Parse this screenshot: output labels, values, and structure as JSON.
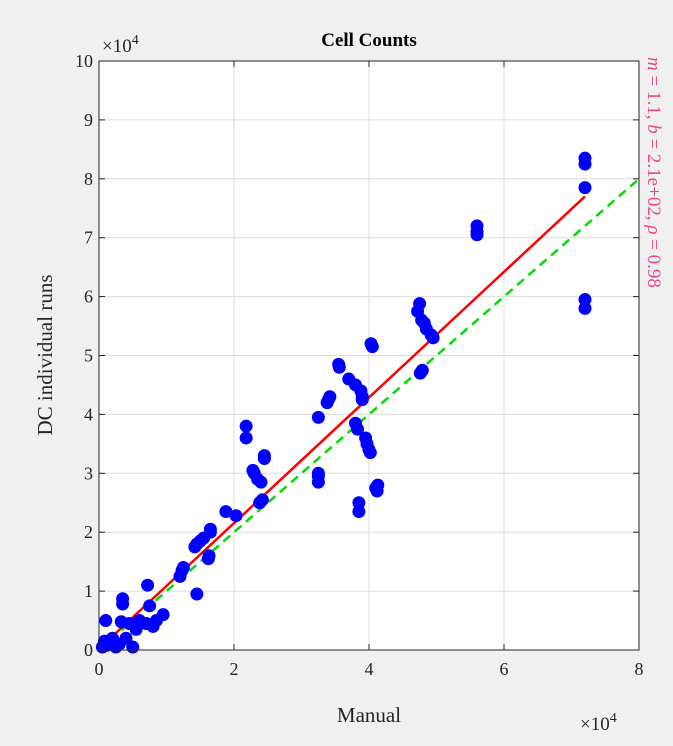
{
  "chart_data": {
    "type": "scatter",
    "title": "Cell Counts",
    "xlabel": "Manual",
    "ylabel": "DC individual runs",
    "x_exponent": "×10",
    "x_exponent_power": "4",
    "y_exponent": "×10",
    "y_exponent_power": "4",
    "xlim": [
      0,
      80000
    ],
    "ylim": [
      0,
      100000
    ],
    "xticks": [
      0,
      20000,
      40000,
      60000,
      80000
    ],
    "xtick_labels": [
      "0",
      "2",
      "4",
      "6",
      "8"
    ],
    "yticks": [
      0,
      10000,
      20000,
      30000,
      40000,
      50000,
      60000,
      70000,
      80000,
      90000,
      100000
    ],
    "ytick_labels": [
      "0",
      "1",
      "2",
      "3",
      "4",
      "5",
      "6",
      "7",
      "8",
      "9",
      "10"
    ],
    "grid": true,
    "annotation": "m = 1.1, b = 2.1e+02, ρ = 0.98",
    "annotation_parts": {
      "m_sym": "m",
      "m_val": " = 1.1, ",
      "b_sym": "b",
      "b_val": " = 2.1e+02, ",
      "rho_sym": "ρ",
      "rho_val": " = 0.98"
    },
    "colors": {
      "points": "#0000ff",
      "fit": "#ff0000",
      "identity": "#00dd00",
      "annotation": "#e8488a"
    },
    "fit_line": {
      "x": [
        0,
        72000
      ],
      "y": [
        210,
        77000
      ]
    },
    "identity_line": {
      "x": [
        0,
        80000
      ],
      "y": [
        0,
        80000
      ]
    },
    "points": [
      {
        "x": 500,
        "y": 500
      },
      {
        "x": 800,
        "y": 1500
      },
      {
        "x": 1000,
        "y": 5000
      },
      {
        "x": 1200,
        "y": 800
      },
      {
        "x": 1500,
        "y": 1200
      },
      {
        "x": 2000,
        "y": 2000
      },
      {
        "x": 2500,
        "y": 500
      },
      {
        "x": 3000,
        "y": 1000
      },
      {
        "x": 3300,
        "y": 4800
      },
      {
        "x": 3500,
        "y": 7800
      },
      {
        "x": 3500,
        "y": 8700
      },
      {
        "x": 4000,
        "y": 2000
      },
      {
        "x": 4500,
        "y": 4500
      },
      {
        "x": 5000,
        "y": 500
      },
      {
        "x": 5500,
        "y": 3500
      },
      {
        "x": 6000,
        "y": 5000
      },
      {
        "x": 7000,
        "y": 4500
      },
      {
        "x": 7200,
        "y": 11000
      },
      {
        "x": 7500,
        "y": 7500
      },
      {
        "x": 8000,
        "y": 4000
      },
      {
        "x": 8500,
        "y": 5000
      },
      {
        "x": 9500,
        "y": 6000
      },
      {
        "x": 12000,
        "y": 12500
      },
      {
        "x": 12300,
        "y": 13500
      },
      {
        "x": 12500,
        "y": 14000
      },
      {
        "x": 14200,
        "y": 17500
      },
      {
        "x": 14500,
        "y": 18000
      },
      {
        "x": 14500,
        "y": 9500
      },
      {
        "x": 15000,
        "y": 18500
      },
      {
        "x": 15500,
        "y": 19000
      },
      {
        "x": 16200,
        "y": 15500
      },
      {
        "x": 16300,
        "y": 16000
      },
      {
        "x": 16500,
        "y": 20000
      },
      {
        "x": 16500,
        "y": 20500
      },
      {
        "x": 18800,
        "y": 23500
      },
      {
        "x": 20300,
        "y": 22800
      },
      {
        "x": 21800,
        "y": 38000
      },
      {
        "x": 21800,
        "y": 36000
      },
      {
        "x": 22800,
        "y": 30500
      },
      {
        "x": 23000,
        "y": 30000
      },
      {
        "x": 23500,
        "y": 29000
      },
      {
        "x": 23800,
        "y": 25000
      },
      {
        "x": 24000,
        "y": 28500
      },
      {
        "x": 24500,
        "y": 33000
      },
      {
        "x": 24500,
        "y": 32500
      },
      {
        "x": 24200,
        "y": 25500
      },
      {
        "x": 32500,
        "y": 28500
      },
      {
        "x": 32500,
        "y": 29500
      },
      {
        "x": 32500,
        "y": 30000
      },
      {
        "x": 32500,
        "y": 39500
      },
      {
        "x": 33800,
        "y": 42000
      },
      {
        "x": 34000,
        "y": 42500
      },
      {
        "x": 34200,
        "y": 43000
      },
      {
        "x": 35500,
        "y": 48500
      },
      {
        "x": 35600,
        "y": 48000
      },
      {
        "x": 37000,
        "y": 46000
      },
      {
        "x": 38000,
        "y": 45000
      },
      {
        "x": 38000,
        "y": 38500
      },
      {
        "x": 38300,
        "y": 37500
      },
      {
        "x": 38500,
        "y": 25000
      },
      {
        "x": 38500,
        "y": 23500
      },
      {
        "x": 38800,
        "y": 44000
      },
      {
        "x": 39000,
        "y": 43000
      },
      {
        "x": 39000,
        "y": 42500
      },
      {
        "x": 39500,
        "y": 36000
      },
      {
        "x": 39700,
        "y": 35000
      },
      {
        "x": 40000,
        "y": 34000
      },
      {
        "x": 40200,
        "y": 33500
      },
      {
        "x": 40300,
        "y": 52000
      },
      {
        "x": 40500,
        "y": 51500
      },
      {
        "x": 41000,
        "y": 27500
      },
      {
        "x": 41200,
        "y": 27000
      },
      {
        "x": 41300,
        "y": 28000
      },
      {
        "x": 47200,
        "y": 57500
      },
      {
        "x": 47500,
        "y": 58800
      },
      {
        "x": 47600,
        "y": 47000
      },
      {
        "x": 47800,
        "y": 56000
      },
      {
        "x": 47900,
        "y": 47500
      },
      {
        "x": 48200,
        "y": 55500
      },
      {
        "x": 48500,
        "y": 54500
      },
      {
        "x": 49200,
        "y": 53500
      },
      {
        "x": 49500,
        "y": 53000
      },
      {
        "x": 56000,
        "y": 71000
      },
      {
        "x": 56000,
        "y": 72000
      },
      {
        "x": 56000,
        "y": 70500
      },
      {
        "x": 72000,
        "y": 83500
      },
      {
        "x": 72000,
        "y": 82500
      },
      {
        "x": 72000,
        "y": 78500
      },
      {
        "x": 72000,
        "y": 59500
      },
      {
        "x": 72000,
        "y": 58000
      }
    ]
  }
}
